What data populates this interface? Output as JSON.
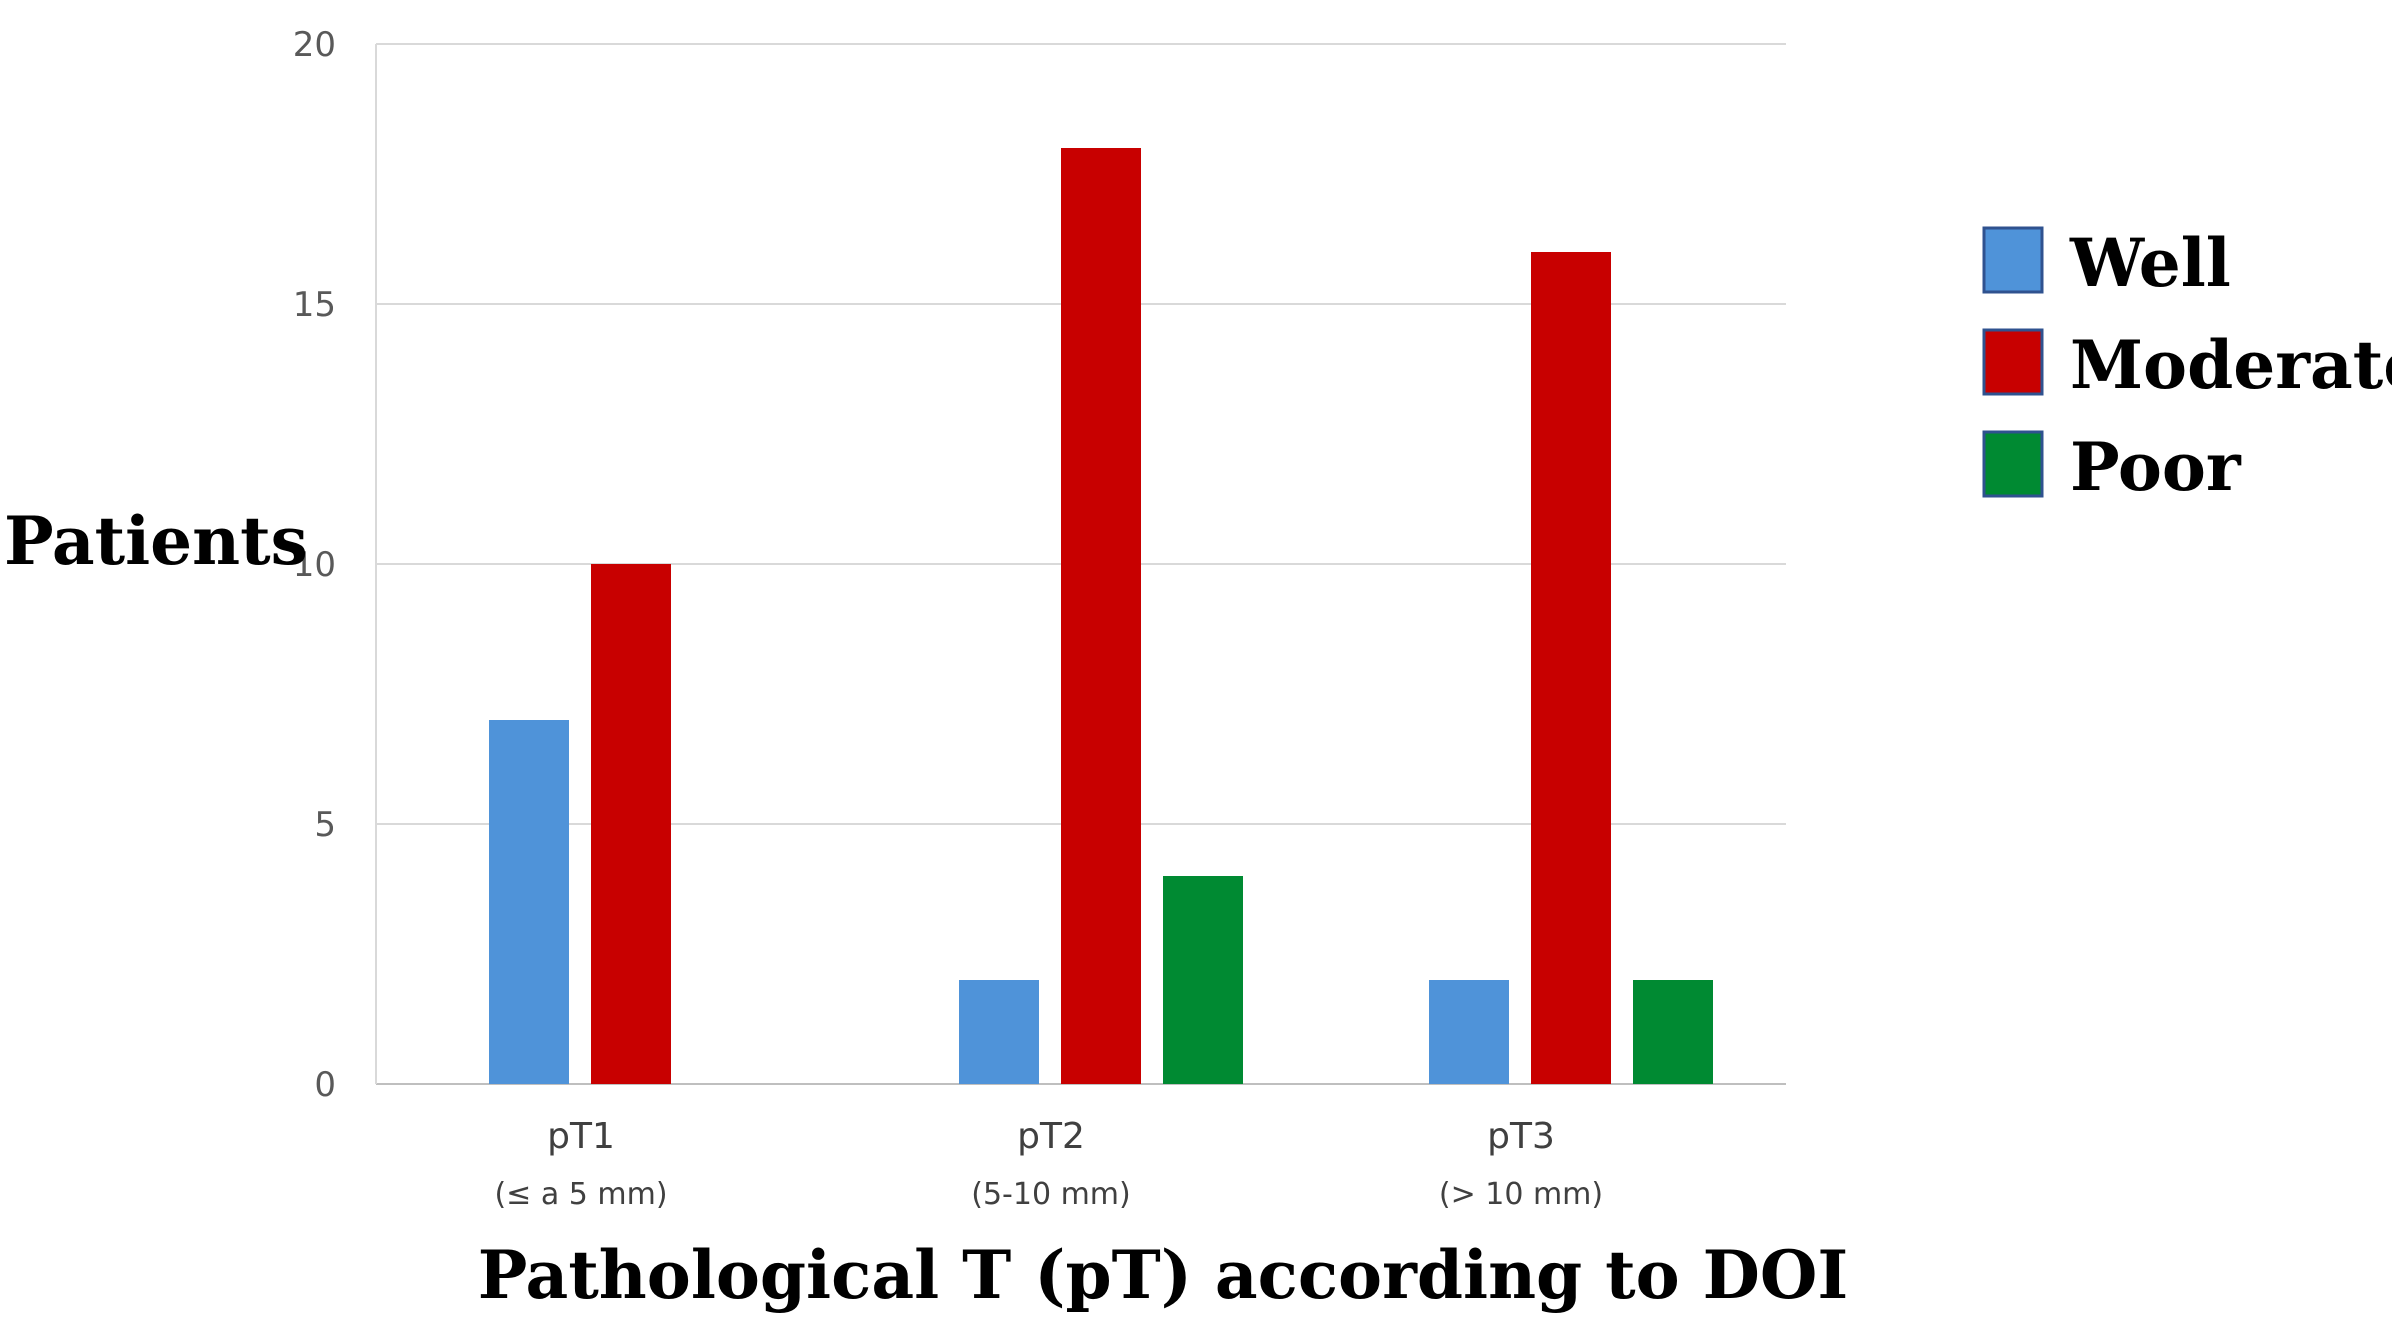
{
  "chart_data": {
    "type": "bar",
    "title": "",
    "xlabel": "Pathological T (pT) according to DOI",
    "ylabel": "Patients",
    "ylim": [
      0,
      20
    ],
    "yticks": [
      0,
      5,
      10,
      15,
      20
    ],
    "grid": true,
    "legend_position": "right",
    "categories": [
      "pT1",
      "pT2",
      "pT3"
    ],
    "category_sublabels": [
      "(≤ a 5 mm)",
      "(5-10 mm)",
      "(> 10 mm)"
    ],
    "series": [
      {
        "name": "Well",
        "color": "#4F93D9",
        "values": [
          7,
          2,
          2
        ]
      },
      {
        "name": "Moderate",
        "color": "#C80000",
        "values": [
          10,
          18,
          16
        ]
      },
      {
        "name": "Poor",
        "color": "#008A32",
        "values": [
          null,
          4,
          2
        ]
      }
    ]
  }
}
